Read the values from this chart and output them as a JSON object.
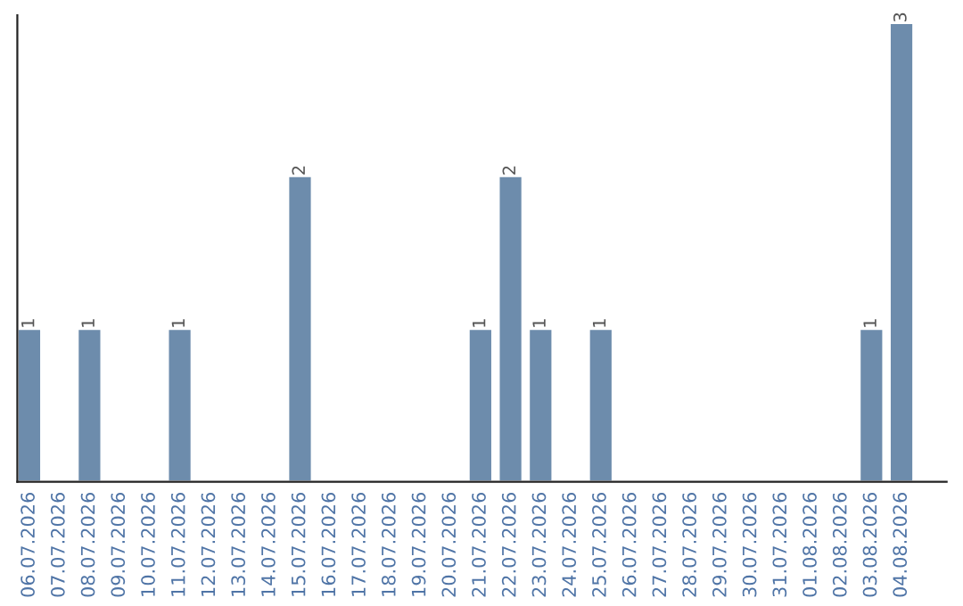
{
  "chart_data": {
    "type": "bar",
    "categories": [
      "06.07.2026",
      "07.07.2026",
      "08.07.2026",
      "09.07.2026",
      "10.07.2026",
      "11.07.2026",
      "12.07.2026",
      "13.07.2026",
      "14.07.2026",
      "15.07.2026",
      "16.07.2026",
      "17.07.2026",
      "18.07.2026",
      "19.07.2026",
      "20.07.2026",
      "21.07.2026",
      "22.07.2026",
      "23.07.2026",
      "24.07.2026",
      "25.07.2026",
      "26.07.2026",
      "27.07.2026",
      "28.07.2026",
      "29.07.2026",
      "30.07.2026",
      "31.07.2026",
      "01.08.2026",
      "02.08.2026",
      "03.08.2026",
      "04.08.2026"
    ],
    "values": [
      1,
      null,
      1,
      null,
      null,
      1,
      null,
      null,
      null,
      2,
      null,
      null,
      null,
      null,
      null,
      1,
      2,
      1,
      null,
      1,
      null,
      null,
      null,
      null,
      null,
      null,
      null,
      null,
      1,
      3
    ],
    "value_labels": [
      "1",
      null,
      "1",
      null,
      null,
      "1",
      null,
      null,
      null,
      "2",
      null,
      null,
      null,
      null,
      null,
      "1",
      "2",
      "1",
      null,
      "1",
      null,
      null,
      null,
      null,
      null,
      null,
      null,
      null,
      "1",
      "3"
    ],
    "color": "#6d8cac",
    "ylim": [
      0,
      3.05
    ],
    "grid": false,
    "legend": false
  }
}
